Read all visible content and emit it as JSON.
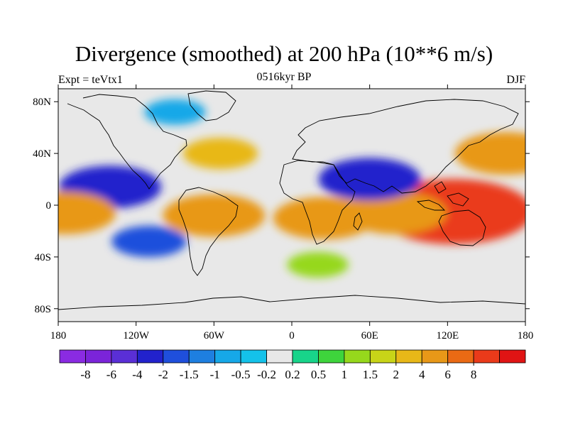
{
  "chart_data": {
    "type": "heatmap",
    "title": "Divergence (smoothed) at 200 hPa (10**6 m/s)",
    "subtitle_left": "Expt = teVtx1",
    "subtitle_center": "0516kyr BP",
    "subtitle_right": "DJF",
    "x_ticks": [
      "180",
      "120W",
      "60W",
      "0",
      "60E",
      "120E",
      "180"
    ],
    "x_values": [
      -180,
      -120,
      -60,
      0,
      60,
      120,
      180
    ],
    "y_ticks": [
      "80N",
      "40N",
      "0",
      "40S",
      "80S"
    ],
    "y_values": [
      80,
      40,
      0,
      -40,
      -80
    ],
    "xlim": [
      -180,
      180
    ],
    "ylim": [
      -90,
      90
    ],
    "colorbar": {
      "colors": [
        "#8a2be2",
        "#7b24d9",
        "#5a2fd6",
        "#2222cc",
        "#1f4fdc",
        "#1e7fe0",
        "#16a8e8",
        "#14c2ea",
        "#e8e8e8",
        "#18d48a",
        "#3ed43c",
        "#96d81c",
        "#c8d418",
        "#e8b818",
        "#e89818",
        "#ea6a14",
        "#ea3a1a",
        "#e01414"
      ],
      "labels": [
        "-8",
        "-6",
        "-4",
        "-2",
        "-1.5",
        "-1",
        "-0.5",
        "-0.2",
        "0.2",
        "0.5",
        "1",
        "1.5",
        "2",
        "4",
        "6",
        "8"
      ]
    },
    "field_features": [
      {
        "label": "equatorial-pacific-convergence",
        "lon": -140,
        "lat": 14,
        "value": -4
      },
      {
        "label": "amazon-divergence",
        "lon": -60,
        "lat": -8,
        "value": 4
      },
      {
        "label": "african-divergence",
        "lon": 25,
        "lat": -10,
        "value": 4
      },
      {
        "label": "maritime-continent-divergence",
        "lon": 125,
        "lat": -5,
        "value": 8
      },
      {
        "label": "indian-ocean-divergence",
        "lon": 80,
        "lat": -6,
        "value": 4
      },
      {
        "label": "south-pacific-convergence",
        "lon": -110,
        "lat": -28,
        "value": -2
      },
      {
        "label": "asia-subtropical-convergence",
        "lon": 60,
        "lat": 20,
        "value": -4
      },
      {
        "label": "north-pacific-divergence",
        "lon": 165,
        "lat": 40,
        "value": 4
      },
      {
        "label": "east-pacific-divergence",
        "lon": -175,
        "lat": -6,
        "value": 4
      },
      {
        "label": "north-atlantic-divergence",
        "lon": -55,
        "lat": 40,
        "value": 2
      },
      {
        "label": "southern-ocean-divergence",
        "lon": 20,
        "lat": -46,
        "value": 1
      },
      {
        "label": "north-polar-convergence",
        "lon": -90,
        "lat": 72,
        "value": -1
      },
      {
        "label": "antarctic-near-zero",
        "lon": 0,
        "lat": -80,
        "value": 0
      }
    ]
  }
}
